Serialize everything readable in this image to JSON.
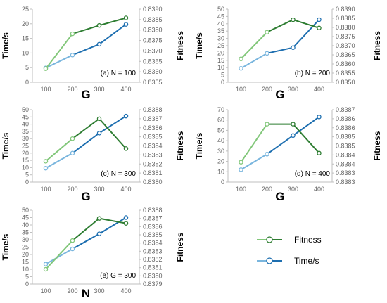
{
  "colors": {
    "fitness_light": "#82c77a",
    "fitness_dark": "#2e7d32",
    "time_light": "#7ab6de",
    "time_dark": "#1e6fb0",
    "axis": "#bfbfbf",
    "tick_text": "#666666"
  },
  "legend": {
    "placement": "bottom-right",
    "items": [
      {
        "label": "Fitness",
        "color_key": "fitness"
      },
      {
        "label": "Time/s",
        "color_key": "time"
      }
    ]
  },
  "chart_data": [
    {
      "type": "line",
      "annotation": "(a) N = 100",
      "xlabel": "G",
      "ylabel_left": "Time/s",
      "ylabel_right": "Fitness",
      "categories": [
        "100",
        "200",
        "300",
        "400"
      ],
      "ylim_left": [
        0,
        25
      ],
      "yticks_left": [
        "0",
        "5",
        "10",
        "15",
        "20",
        "25"
      ],
      "ylim_right": [
        0.8355,
        0.839
      ],
      "yticks_right": [
        "0.8355",
        "0.8360",
        "0.8365",
        "0.8370",
        "0.8375",
        "0.8380",
        "0.8385",
        "0.8390"
      ],
      "series": [
        {
          "name": "Time/s",
          "axis": "left",
          "values": [
            4.9,
            9.3,
            13.0,
            19.8
          ]
        },
        {
          "name": "Fitness",
          "axis": "right",
          "values": [
            0.83615,
            0.83782,
            0.83822,
            0.83858
          ]
        }
      ],
      "grid": false
    },
    {
      "type": "line",
      "annotation": "(b) N = 200",
      "xlabel": "G",
      "ylabel_left": "Time/s",
      "ylabel_right": "Fitness",
      "categories": [
        "100",
        "200",
        "300",
        "400"
      ],
      "ylim_left": [
        0,
        50
      ],
      "yticks_left": [
        "0",
        "5",
        "10",
        "15",
        "20",
        "25",
        "30",
        "35",
        "40",
        "45",
        "50"
      ],
      "ylim_right": [
        0.835,
        0.839
      ],
      "yticks_right": [
        "0.8350",
        "0.8355",
        "0.8360",
        "0.8365",
        "0.8370",
        "0.8375",
        "0.8380",
        "0.8385",
        "0.8390"
      ],
      "series": [
        {
          "name": "Time/s",
          "axis": "left",
          "values": [
            9.5,
            19.8,
            23.7,
            42.8
          ]
        },
        {
          "name": "Fitness",
          "axis": "right",
          "values": [
            0.83628,
            0.83774,
            0.83842,
            0.83797
          ]
        }
      ],
      "grid": false
    },
    {
      "type": "line",
      "annotation": "(c) N = 300",
      "xlabel": "G",
      "ylabel_left": "Time/s",
      "ylabel_right": "Fitness",
      "categories": [
        "100",
        "200",
        "300",
        "400"
      ],
      "ylim_left": [
        0,
        50
      ],
      "yticks_left": [
        "0",
        "5",
        "10",
        "15",
        "20",
        "25",
        "30",
        "35",
        "40",
        "45",
        "50"
      ],
      "ylim_right": [
        0.838,
        0.8388
      ],
      "yticks_right": [
        "0.8380",
        "0.8381",
        "0.8382",
        "0.8383",
        "0.8384",
        "0.8385",
        "0.8386",
        "0.8387",
        "0.8388"
      ],
      "series": [
        {
          "name": "Time/s",
          "axis": "left",
          "values": [
            9.6,
            20.0,
            33.8,
            45.6
          ]
        },
        {
          "name": "Fitness",
          "axis": "right",
          "values": [
            0.83823,
            0.83848,
            0.8387,
            0.83837
          ]
        }
      ],
      "grid": false
    },
    {
      "type": "line",
      "annotation": "(d) N = 400",
      "xlabel": "G",
      "ylabel_left": "Time/s",
      "ylabel_right": "Fitness",
      "categories": [
        "100",
        "200",
        "300",
        "400"
      ],
      "ylim_left": [
        0,
        70
      ],
      "yticks_left": [
        "0",
        "10",
        "20",
        "30",
        "40",
        "50",
        "60",
        "70"
      ],
      "ylim_right": [
        0.8383,
        0.8387
      ],
      "yticks_right": [
        "0.8383",
        "0.8383",
        "0.8384",
        "0.8384",
        "0.8385",
        "0.8385",
        "0.8386",
        "0.8386",
        "0.8387"
      ],
      "series": [
        {
          "name": "Time/s",
          "axis": "left",
          "values": [
            12.0,
            27.0,
            45.0,
            63.0
          ]
        },
        {
          "name": "Fitness",
          "axis": "right",
          "values": [
            0.83841,
            0.83862,
            0.83862,
            0.83846
          ]
        }
      ],
      "grid": false
    },
    {
      "type": "line",
      "annotation": "(e) G = 300",
      "xlabel": "N",
      "ylabel_left": "Time/s",
      "ylabel_right": "Fitness",
      "categories": [
        "100",
        "200",
        "300",
        "400"
      ],
      "ylim_left": [
        0,
        50
      ],
      "yticks_left": [
        "0",
        "5",
        "10",
        "15",
        "20",
        "25",
        "30",
        "35",
        "40",
        "45",
        "50"
      ],
      "ylim_right": [
        0.8379,
        0.8388
      ],
      "yticks_right": [
        "0.8379",
        "0.8380",
        "0.8381",
        "0.8382",
        "0.8383",
        "0.8384",
        "0.8385",
        "0.8386",
        "0.8387",
        "0.8388"
      ],
      "series": [
        {
          "name": "Time/s",
          "axis": "left",
          "values": [
            13.5,
            23.8,
            34.0,
            45.0
          ]
        },
        {
          "name": "Fitness",
          "axis": "right",
          "values": [
            0.83808,
            0.83843,
            0.8387,
            0.83864
          ]
        }
      ],
      "grid": false
    }
  ]
}
